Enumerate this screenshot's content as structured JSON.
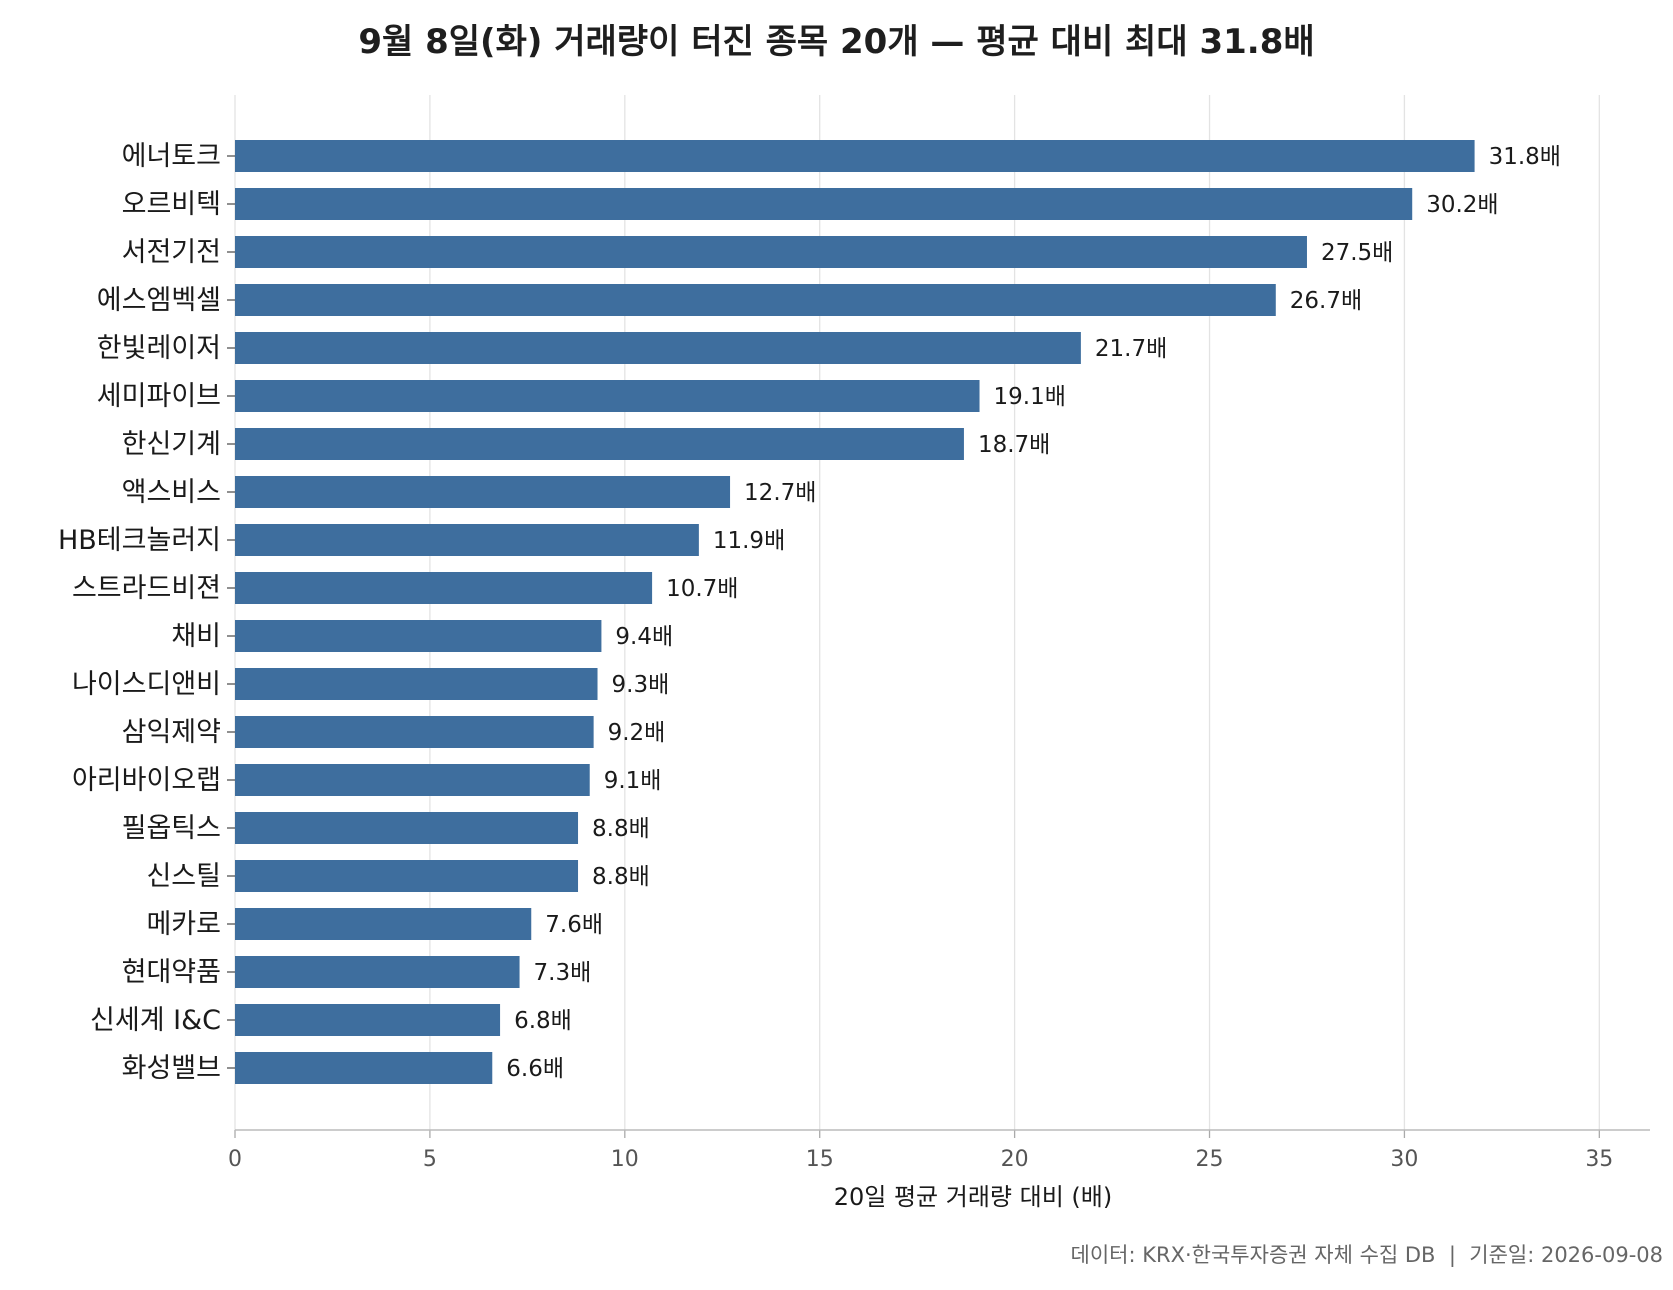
{
  "chart_data": {
    "type": "bar",
    "orientation": "horizontal",
    "title": "9월 8일(화) 거래량이 터진 종목 20개 — 평균 대비 최대 31.8배",
    "xlabel": "20일 평균 거래량 대비 (배)",
    "ylabel": "",
    "xlim": [
      0,
      36.3
    ],
    "xticks": [
      0,
      5,
      10,
      15,
      20,
      25,
      30,
      35
    ],
    "grid": "vertical",
    "bar_color": "#3e6e9e",
    "value_suffix": "배",
    "categories": [
      "에너토크",
      "오르비텍",
      "서전기전",
      "에스엠벡셀",
      "한빛레이저",
      "세미파이브",
      "한신기계",
      "액스비스",
      "HB테크놀러지",
      "스트라드비젼",
      "채비",
      "나이스디앤비",
      "삼익제약",
      "아리바이오랩",
      "필옵틱스",
      "신스틸",
      "메카로",
      "현대약품",
      "신세계 I&C",
      "화성밸브"
    ],
    "values": [
      31.8,
      30.2,
      27.5,
      26.7,
      21.7,
      19.1,
      18.7,
      12.7,
      11.9,
      10.7,
      9.4,
      9.3,
      9.2,
      9.1,
      8.8,
      8.8,
      7.6,
      7.3,
      6.8,
      6.6
    ],
    "data_labels": [
      "31.8배",
      "30.2배",
      "27.5배",
      "26.7배",
      "21.7배",
      "19.1배",
      "18.7배",
      "12.7배",
      "11.9배",
      "10.7배",
      "9.4배",
      "9.3배",
      "9.2배",
      "9.1배",
      "8.8배",
      "8.8배",
      "7.6배",
      "7.3배",
      "6.8배",
      "6.6배"
    ],
    "footnote": "데이터: KRX·한국투자증권 자체 수집 DB  |  기준일: 2026-09-08"
  }
}
